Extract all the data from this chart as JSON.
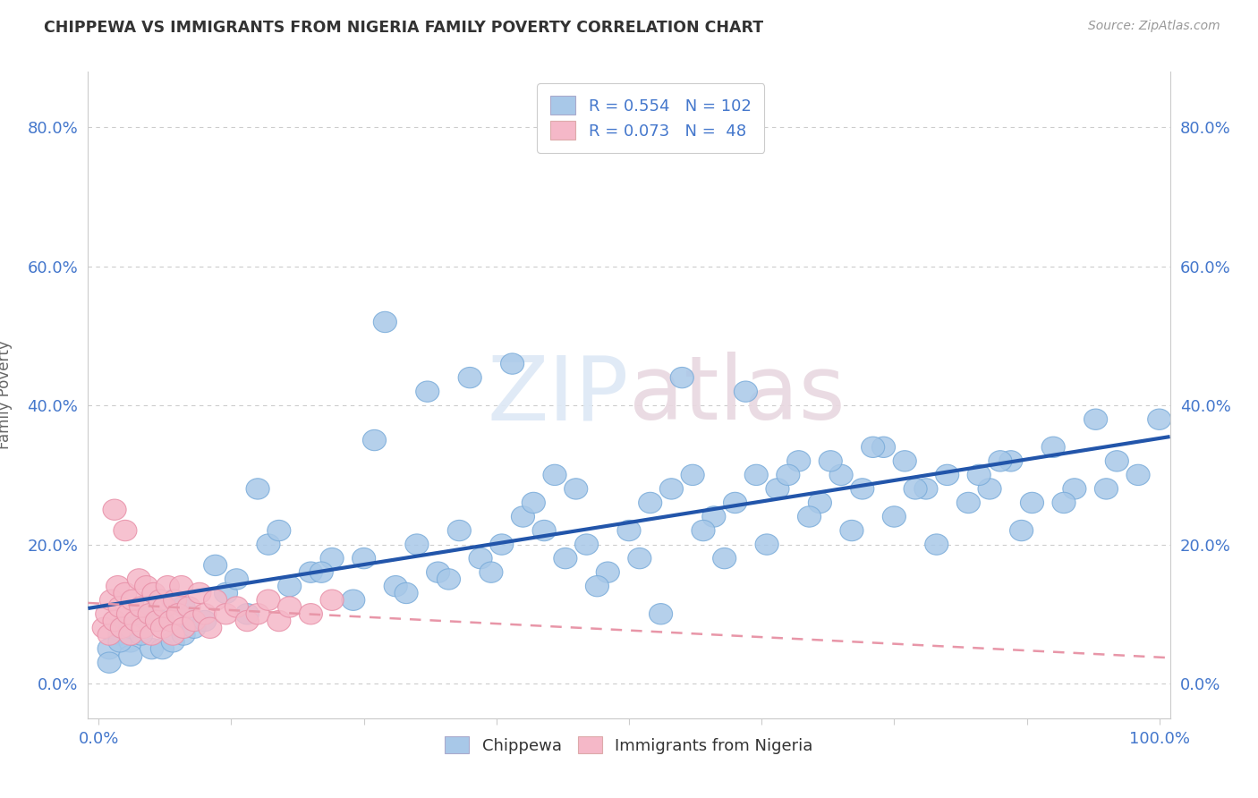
{
  "title": "CHIPPEWA VS IMMIGRANTS FROM NIGERIA FAMILY POVERTY CORRELATION CHART",
  "source": "Source: ZipAtlas.com",
  "ylabel": "Family Poverty",
  "xlim": [
    -0.01,
    1.01
  ],
  "ylim": [
    -0.05,
    0.88
  ],
  "ytick_vals": [
    0.0,
    0.2,
    0.4,
    0.6,
    0.8
  ],
  "ytick_labels": [
    "0.0%",
    "20.0%",
    "40.0%",
    "60.0%",
    "80.0%"
  ],
  "xtick_vals": [
    0.0,
    0.125,
    0.25,
    0.375,
    0.5,
    0.625,
    0.75,
    0.875,
    1.0
  ],
  "color_blue": "#a8c8e8",
  "color_pink": "#f5b8c8",
  "line_blue": "#2255aa",
  "line_pink": "#e896a8",
  "text_color": "#4477cc",
  "grid_color": "#cccccc",
  "background": "#ffffff",
  "watermark_color": "#e8e8f0",
  "chippewa_x": [
    0.02,
    0.01,
    0.03,
    0.01,
    0.02,
    0.03,
    0.04,
    0.02,
    0.05,
    0.03,
    0.04,
    0.06,
    0.05,
    0.07,
    0.06,
    0.08,
    0.07,
    0.09,
    0.08,
    0.1,
    0.12,
    0.14,
    0.11,
    0.15,
    0.13,
    0.16,
    0.18,
    0.2,
    0.17,
    0.22,
    0.24,
    0.21,
    0.26,
    0.28,
    0.25,
    0.3,
    0.32,
    0.27,
    0.29,
    0.34,
    0.36,
    0.33,
    0.38,
    0.4,
    0.37,
    0.42,
    0.44,
    0.41,
    0.46,
    0.48,
    0.45,
    0.5,
    0.52,
    0.47,
    0.54,
    0.56,
    0.51,
    0.58,
    0.6,
    0.53,
    0.62,
    0.57,
    0.64,
    0.66,
    0.59,
    0.68,
    0.7,
    0.63,
    0.72,
    0.74,
    0.67,
    0.76,
    0.78,
    0.71,
    0.8,
    0.82,
    0.75,
    0.84,
    0.86,
    0.79,
    0.88,
    0.83,
    0.9,
    0.92,
    0.87,
    0.94,
    0.96,
    0.91,
    0.98,
    1.0,
    0.95,
    0.31,
    0.35,
    0.39,
    0.43,
    0.55,
    0.61,
    0.65,
    0.69,
    0.73,
    0.77,
    0.85
  ],
  "chippewa_y": [
    0.07,
    0.05,
    0.06,
    0.03,
    0.08,
    0.04,
    0.09,
    0.06,
    0.05,
    0.08,
    0.07,
    0.05,
    0.1,
    0.06,
    0.09,
    0.07,
    0.12,
    0.08,
    0.11,
    0.09,
    0.13,
    0.1,
    0.17,
    0.28,
    0.15,
    0.2,
    0.14,
    0.16,
    0.22,
    0.18,
    0.12,
    0.16,
    0.35,
    0.14,
    0.18,
    0.2,
    0.16,
    0.52,
    0.13,
    0.22,
    0.18,
    0.15,
    0.2,
    0.24,
    0.16,
    0.22,
    0.18,
    0.26,
    0.2,
    0.16,
    0.28,
    0.22,
    0.26,
    0.14,
    0.28,
    0.3,
    0.18,
    0.24,
    0.26,
    0.1,
    0.3,
    0.22,
    0.28,
    0.32,
    0.18,
    0.26,
    0.3,
    0.2,
    0.28,
    0.34,
    0.24,
    0.32,
    0.28,
    0.22,
    0.3,
    0.26,
    0.24,
    0.28,
    0.32,
    0.2,
    0.26,
    0.3,
    0.34,
    0.28,
    0.22,
    0.38,
    0.32,
    0.26,
    0.3,
    0.38,
    0.28,
    0.42,
    0.44,
    0.46,
    0.3,
    0.44,
    0.42,
    0.3,
    0.32,
    0.34,
    0.28,
    0.32
  ],
  "nigeria_x": [
    0.005,
    0.008,
    0.01,
    0.012,
    0.015,
    0.018,
    0.02,
    0.022,
    0.025,
    0.028,
    0.03,
    0.032,
    0.035,
    0.038,
    0.04,
    0.042,
    0.045,
    0.048,
    0.05,
    0.052,
    0.055,
    0.058,
    0.06,
    0.062,
    0.065,
    0.068,
    0.07,
    0.072,
    0.075,
    0.078,
    0.08,
    0.085,
    0.09,
    0.095,
    0.1,
    0.105,
    0.11,
    0.12,
    0.13,
    0.14,
    0.15,
    0.16,
    0.17,
    0.18,
    0.2,
    0.22,
    0.015,
    0.025
  ],
  "nigeria_y": [
    0.08,
    0.1,
    0.07,
    0.12,
    0.09,
    0.14,
    0.11,
    0.08,
    0.13,
    0.1,
    0.07,
    0.12,
    0.09,
    0.15,
    0.11,
    0.08,
    0.14,
    0.1,
    0.07,
    0.13,
    0.09,
    0.12,
    0.08,
    0.11,
    0.14,
    0.09,
    0.07,
    0.12,
    0.1,
    0.14,
    0.08,
    0.11,
    0.09,
    0.13,
    0.1,
    0.08,
    0.12,
    0.1,
    0.11,
    0.09,
    0.1,
    0.12,
    0.09,
    0.11,
    0.1,
    0.12,
    0.25,
    0.22
  ]
}
